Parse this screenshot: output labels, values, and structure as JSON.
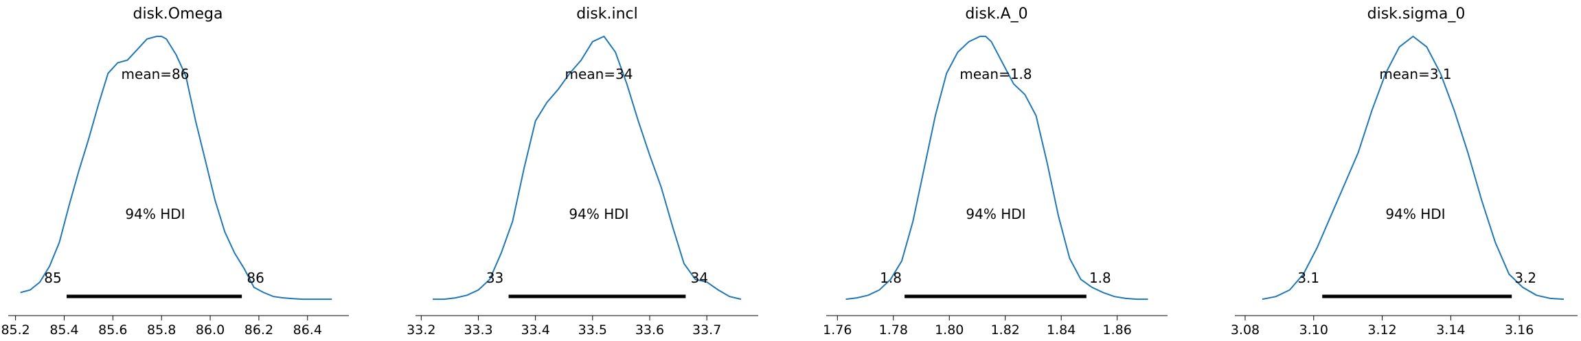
{
  "chart_data": [
    {
      "type": "line",
      "title": "disk.Omega",
      "xlabel": "",
      "ylabel": "",
      "xlim": [
        85.17,
        86.57
      ],
      "xticks": [
        "85.2",
        "85.4",
        "85.6",
        "85.8",
        "86.0",
        "86.2",
        "86.4"
      ],
      "mean_label": "mean=86",
      "hdi_label": "94% HDI",
      "hdi": [
        85.41,
        86.13
      ],
      "hdi_low_label": "85",
      "hdi_high_label": "86",
      "density": {
        "x": [
          85.22,
          85.26,
          85.3,
          85.34,
          85.38,
          85.42,
          85.46,
          85.5,
          85.54,
          85.58,
          85.62,
          85.66,
          85.7,
          85.74,
          85.78,
          85.8,
          85.82,
          85.86,
          85.9,
          85.94,
          85.98,
          86.02,
          86.06,
          86.1,
          86.14,
          86.18,
          86.22,
          86.26,
          86.3,
          86.34,
          86.38,
          86.42,
          86.46,
          86.5
        ],
        "y": [
          0.03,
          0.04,
          0.07,
          0.13,
          0.22,
          0.36,
          0.49,
          0.61,
          0.74,
          0.86,
          0.9,
          0.91,
          0.95,
          0.99,
          1.0,
          1.0,
          0.99,
          0.93,
          0.85,
          0.68,
          0.53,
          0.38,
          0.26,
          0.18,
          0.12,
          0.05,
          0.03,
          0.015,
          0.01,
          0.007,
          0.005,
          0.005,
          0.005,
          0.005
        ]
      }
    },
    {
      "type": "line",
      "title": "disk.incl",
      "xlabel": "",
      "ylabel": "",
      "xlim": [
        33.19,
        33.79
      ],
      "xticks": [
        "33.2",
        "33.3",
        "33.4",
        "33.5",
        "33.6",
        "33.7"
      ],
      "mean_label": "mean=34",
      "hdi_label": "94% HDI",
      "hdi": [
        33.353,
        33.663
      ],
      "hdi_low_label": "33",
      "hdi_high_label": "34",
      "density": {
        "x": [
          33.22,
          33.24,
          33.26,
          33.28,
          33.3,
          33.32,
          33.34,
          33.36,
          33.38,
          33.4,
          33.42,
          33.44,
          33.46,
          33.48,
          33.5,
          33.52,
          33.54,
          33.56,
          33.58,
          33.6,
          33.62,
          33.64,
          33.66,
          33.68,
          33.7,
          33.72,
          33.74,
          33.76
        ],
        "y": [
          0.005,
          0.005,
          0.01,
          0.02,
          0.04,
          0.08,
          0.18,
          0.3,
          0.5,
          0.68,
          0.75,
          0.8,
          0.86,
          0.91,
          0.98,
          1.0,
          0.94,
          0.82,
          0.68,
          0.55,
          0.43,
          0.28,
          0.14,
          0.08,
          0.07,
          0.04,
          0.015,
          0.005
        ]
      }
    },
    {
      "type": "line",
      "title": "disk.A_0",
      "xlabel": "",
      "ylabel": "",
      "xlim": [
        1.756,
        1.878
      ],
      "xticks": [
        "1.76",
        "1.78",
        "1.80",
        "1.82",
        "1.84",
        "1.86"
      ],
      "mean_label": "mean=1.8",
      "hdi_label": "94% HDI",
      "hdi": [
        1.784,
        1.849
      ],
      "hdi_low_label": "1.8",
      "hdi_high_label": "1.8",
      "density": {
        "x": [
          1.763,
          1.767,
          1.771,
          1.775,
          1.779,
          1.783,
          1.787,
          1.791,
          1.795,
          1.799,
          1.803,
          1.807,
          1.811,
          1.813,
          1.815,
          1.819,
          1.823,
          1.827,
          1.831,
          1.835,
          1.839,
          1.843,
          1.847,
          1.851,
          1.855,
          1.859,
          1.863,
          1.867,
          1.871
        ],
        "y": [
          0.005,
          0.01,
          0.02,
          0.04,
          0.08,
          0.15,
          0.3,
          0.5,
          0.7,
          0.86,
          0.94,
          0.98,
          1.0,
          1.0,
          0.98,
          0.9,
          0.82,
          0.78,
          0.7,
          0.52,
          0.32,
          0.16,
          0.08,
          0.05,
          0.03,
          0.015,
          0.008,
          0.005,
          0.005
        ]
      }
    },
    {
      "type": "line",
      "title": "disk.sigma_0",
      "xlabel": "",
      "ylabel": "",
      "xlim": [
        3.077,
        3.177
      ],
      "xticks": [
        "3.08",
        "3.10",
        "3.12",
        "3.14",
        "3.16"
      ],
      "mean_label": "mean=3.1",
      "hdi_label": "94% HDI",
      "hdi": [
        3.1025,
        3.1578
      ],
      "hdi_low_label": "3.1",
      "hdi_high_label": "3.2",
      "density": {
        "x": [
          3.085,
          3.089,
          3.093,
          3.097,
          3.101,
          3.105,
          3.109,
          3.113,
          3.117,
          3.121,
          3.125,
          3.129,
          3.133,
          3.137,
          3.141,
          3.145,
          3.149,
          3.153,
          3.157,
          3.161,
          3.165,
          3.169,
          3.173
        ],
        "y": [
          0.005,
          0.015,
          0.04,
          0.1,
          0.2,
          0.32,
          0.44,
          0.56,
          0.72,
          0.86,
          0.96,
          1.0,
          0.96,
          0.86,
          0.72,
          0.56,
          0.38,
          0.22,
          0.1,
          0.05,
          0.02,
          0.008,
          0.005
        ]
      }
    }
  ],
  "colors": {
    "line": "#1f77b4",
    "hdi": "#000000",
    "axis": "#000000"
  }
}
